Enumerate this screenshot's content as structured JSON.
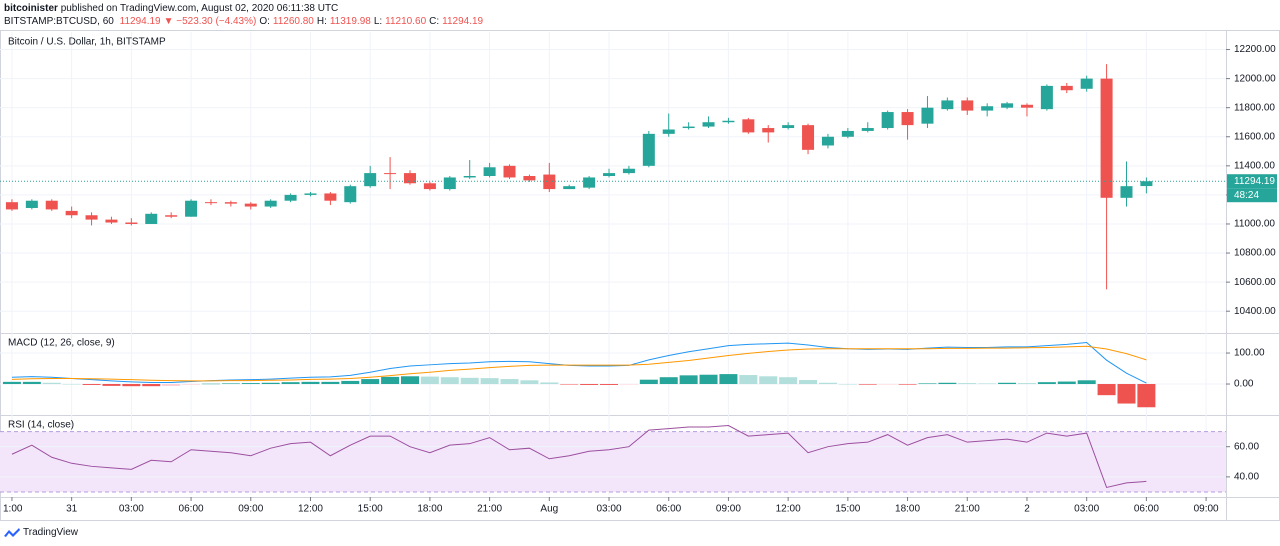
{
  "header": {
    "author": "bitcoinister",
    "published": "published on TradingView.com, August 02, 2020 06:11:38 UTC",
    "symbol": "BITSTAMP:BTCUSD, 60",
    "price": "11294.19",
    "change": "▼ −523.30 (−4.43%)",
    "ohlc": [
      {
        "key": "O:",
        "value": "11260.80"
      },
      {
        "key": "H:",
        "value": "11319.98"
      },
      {
        "key": "L:",
        "value": "11210.60"
      },
      {
        "key": "C:",
        "value": "11294.19"
      }
    ]
  },
  "footer": {
    "brand": "TradingView"
  },
  "chart_data": [
    {
      "type": "candlestick",
      "title": "Bitcoin / U.S. Dollar, 1h, BITSTAMP",
      "up_color": "#26a69a",
      "down_color": "#ef5350",
      "open": [
        11150,
        11110,
        11160,
        11090,
        11060,
        11030,
        11010,
        11000,
        11060,
        11050,
        11150,
        11150,
        11140,
        11120,
        11160,
        11200,
        11210,
        11150,
        11260,
        11350,
        11350,
        11280,
        11240,
        11320,
        11330,
        11400,
        11330,
        11340,
        11240,
        11250,
        11330,
        11350,
        11400,
        11620,
        11660,
        11670,
        11700,
        11720,
        11660,
        11660,
        11680,
        11540,
        11600,
        11640,
        11660,
        11770,
        11690,
        11790,
        11850,
        11780,
        11800,
        11820,
        11790,
        11950,
        11930,
        12000,
        11180,
        11260.8
      ],
      "high": [
        11170,
        11170,
        11170,
        11120,
        11080,
        11050,
        11040,
        11080,
        11080,
        11170,
        11170,
        11160,
        11150,
        11170,
        11210,
        11220,
        11220,
        11270,
        11400,
        11460,
        11370,
        11290,
        11330,
        11440,
        11420,
        11410,
        11340,
        11420,
        11270,
        11330,
        11380,
        11400,
        11640,
        11760,
        11700,
        11740,
        11730,
        11730,
        11680,
        11700,
        11690,
        11620,
        11660,
        11700,
        11780,
        11790,
        11880,
        11870,
        11870,
        11830,
        11840,
        11830,
        11960,
        11970,
        12020,
        12100,
        11430,
        11319.98
      ],
      "low": [
        11090,
        11100,
        11090,
        11040,
        10990,
        11000,
        10990,
        11000,
        11040,
        11050,
        11130,
        11120,
        11100,
        11110,
        11150,
        11190,
        11130,
        11140,
        11250,
        11240,
        11270,
        11230,
        11230,
        11310,
        11320,
        11310,
        11290,
        11220,
        11240,
        11240,
        11320,
        11340,
        11390,
        11600,
        11650,
        11660,
        11690,
        11620,
        11560,
        11650,
        11480,
        11520,
        11590,
        11630,
        11650,
        11580,
        11660,
        11780,
        11750,
        11740,
        11790,
        11740,
        11780,
        11900,
        11910,
        10550,
        11120,
        11210.6
      ],
      "close": [
        11100,
        11160,
        11100,
        11060,
        11030,
        11010,
        11000,
        11070,
        11050,
        11160,
        11150,
        11140,
        11120,
        11160,
        11200,
        11210,
        11160,
        11260,
        11350,
        11350,
        11280,
        11240,
        11320,
        11330,
        11390,
        11320,
        11300,
        11240,
        11260,
        11320,
        11350,
        11380,
        11620,
        11650,
        11670,
        11700,
        11710,
        11630,
        11630,
        11680,
        11510,
        11600,
        11640,
        11660,
        11770,
        11680,
        11800,
        11850,
        11780,
        11810,
        11830,
        11800,
        11950,
        11920,
        12000,
        11180,
        11260,
        11294.19
      ],
      "ylim": [
        10250,
        12300
      ],
      "yticks": [
        {
          "value": 10400,
          "label": "10400.00"
        },
        {
          "value": 10600,
          "label": "10600.00"
        },
        {
          "value": 10800,
          "label": "10800.00"
        },
        {
          "value": 11000,
          "label": "11000.00"
        },
        {
          "value": 11200,
          "label": "11200.00"
        },
        {
          "value": 11400,
          "label": "11400.00"
        },
        {
          "value": 11600,
          "label": "11600.00"
        },
        {
          "value": 11800,
          "label": "11800.00"
        },
        {
          "value": 12000,
          "label": "12000.00"
        },
        {
          "value": 12200,
          "label": "12200.00"
        }
      ],
      "last_price": 11294.19,
      "countdown": "48:24",
      "xlim": [
        -0.6,
        61
      ],
      "xticks": [
        {
          "value": 0,
          "label": "1:00"
        },
        {
          "value": 3,
          "label": "31"
        },
        {
          "value": 6,
          "label": "03:00"
        },
        {
          "value": 9,
          "label": "06:00"
        },
        {
          "value": 12,
          "label": "09:00"
        },
        {
          "value": 15,
          "label": "12:00"
        },
        {
          "value": 18,
          "label": "15:00"
        },
        {
          "value": 21,
          "label": "18:00"
        },
        {
          "value": 24,
          "label": "21:00"
        },
        {
          "value": 27,
          "label": "Aug"
        },
        {
          "value": 30,
          "label": "03:00"
        },
        {
          "value": 33,
          "label": "06:00"
        },
        {
          "value": 36,
          "label": "09:00"
        },
        {
          "value": 39,
          "label": "12:00"
        },
        {
          "value": 42,
          "label": "15:00"
        },
        {
          "value": 45,
          "label": "18:00"
        },
        {
          "value": 48,
          "label": "21:00"
        },
        {
          "value": 51,
          "label": "2"
        },
        {
          "value": 54,
          "label": "03:00"
        },
        {
          "value": 57,
          "label": "06:00"
        },
        {
          "value": 60,
          "label": "09:00"
        }
      ]
    },
    {
      "type": "macd",
      "title": "MACD (12, 26, close, 9)",
      "macd_color": "#2196f3",
      "signal_color": "#ff9800",
      "hist_colors": {
        "up_grow": "#26a69a",
        "up_fall": "#b2dfdb",
        "down_fall": "#ef5350",
        "down_grow": "#ffcdd2"
      },
      "macd": [
        22,
        24,
        22,
        18,
        14,
        10,
        7,
        5,
        5,
        8,
        11,
        13,
        14,
        16,
        19,
        22,
        23,
        28,
        38,
        50,
        58,
        62,
        66,
        68,
        72,
        73,
        72,
        66,
        60,
        58,
        58,
        60,
        78,
        92,
        104,
        114,
        124,
        128,
        130,
        132,
        126,
        118,
        114,
        112,
        113,
        112,
        116,
        119,
        118,
        118,
        120,
        120,
        124,
        128,
        134,
        77,
        35,
        3
      ],
      "signal": [
        15,
        17,
        18,
        18,
        17,
        16,
        14,
        12,
        11,
        10,
        10,
        11,
        11,
        12,
        13,
        15,
        16,
        18,
        22,
        27,
        33,
        38,
        44,
        48,
        53,
        57,
        60,
        61,
        61,
        61,
        61,
        61,
        64,
        70,
        76,
        84,
        92,
        99,
        105,
        110,
        113,
        114,
        114,
        114,
        114,
        114,
        114,
        115,
        115,
        116,
        116,
        117,
        118,
        120,
        122,
        113,
        98,
        78
      ],
      "histogram": [
        7,
        7,
        4,
        0,
        -3,
        -6,
        -7,
        -7,
        -6,
        -2,
        1,
        2,
        3,
        4,
        6,
        7,
        7,
        10,
        16,
        23,
        25,
        24,
        22,
        20,
        19,
        16,
        12,
        5,
        -1,
        -3,
        -3,
        -1,
        14,
        22,
        28,
        30,
        32,
        29,
        25,
        22,
        13,
        4,
        0,
        -2,
        -1,
        -2,
        2,
        4,
        3,
        2,
        4,
        3,
        6,
        8,
        12,
        -36,
        -63,
        -75
      ],
      "ylim": [
        -100,
        155
      ],
      "yticks": [
        {
          "value": 0,
          "label": "0.00"
        },
        {
          "value": 100,
          "label": "100.00"
        }
      ]
    },
    {
      "type": "line",
      "title": "RSI (14, close)",
      "color": "#9c4f9e",
      "band": [
        30,
        70
      ],
      "band_color": "#f3e6fb",
      "values": [
        55,
        61,
        53,
        49,
        47,
        46,
        45,
        51,
        50,
        58,
        57,
        56,
        54,
        59,
        62,
        63,
        54,
        61,
        67,
        67,
        60,
        56,
        61,
        62,
        66,
        58,
        59,
        52,
        54,
        57,
        58,
        60,
        71,
        72,
        73,
        73,
        74,
        67,
        68,
        69,
        56,
        60,
        62,
        63,
        68,
        61,
        66,
        68,
        63,
        64,
        65,
        63,
        69,
        67,
        69,
        33,
        36,
        37
      ],
      "ylim": [
        28,
        79
      ],
      "yticks": [
        {
          "value": 40,
          "label": "40.00"
        },
        {
          "value": 60,
          "label": "60.00"
        }
      ]
    }
  ]
}
